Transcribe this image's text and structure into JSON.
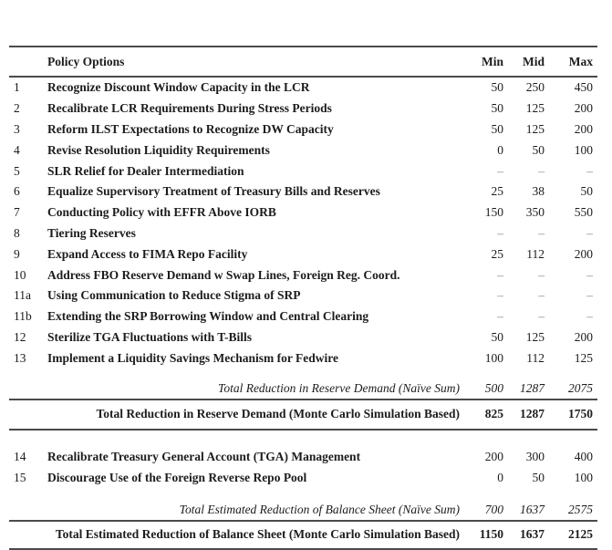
{
  "colors": {
    "rule": "#4a4a4a",
    "text": "#1c1c1c",
    "dash": "#8a8a8a"
  },
  "header": {
    "policy": "Policy Options",
    "min": "Min",
    "mid": "Mid",
    "max": "Max"
  },
  "section1": {
    "rows": [
      {
        "num": "1",
        "label": "Recognize Discount Window Capacity in the LCR",
        "min": "50",
        "mid": "250",
        "max": "450"
      },
      {
        "num": "2",
        "label": "Recalibrate LCR Requirements During Stress Periods",
        "min": "50",
        "mid": "125",
        "max": "200"
      },
      {
        "num": "3",
        "label": "Reform ILST Expectations to Recognize DW Capacity",
        "min": "50",
        "mid": "125",
        "max": "200"
      },
      {
        "num": "4",
        "label": "Revise Resolution Liquidity Requirements",
        "min": "0",
        "mid": "50",
        "max": "100"
      },
      {
        "num": "5",
        "label": "SLR Relief for Dealer Intermediation",
        "min": "–",
        "mid": "–",
        "max": "–"
      },
      {
        "num": "6",
        "label": "Equalize Supervisory Treatment of Treasury Bills and Reserves",
        "min": "25",
        "mid": "38",
        "max": "50"
      },
      {
        "num": "7",
        "label": "Conducting Policy with EFFR Above IORB",
        "min": "150",
        "mid": "350",
        "max": "550"
      },
      {
        "num": "8",
        "label": "Tiering Reserves",
        "min": "–",
        "mid": "–",
        "max": "–"
      },
      {
        "num": "9",
        "label": "Expand Access to FIMA Repo Facility",
        "min": "25",
        "mid": "112",
        "max": "200"
      },
      {
        "num": "10",
        "label": "Address FBO Reserve Demand w Swap Lines, Foreign Reg. Coord.",
        "min": "–",
        "mid": "–",
        "max": "–"
      },
      {
        "num": "11a",
        "label": "Using Communication to Reduce Stigma of SRP",
        "min": "–",
        "mid": "–",
        "max": "–"
      },
      {
        "num": "11b",
        "label": "Extending the SRP Borrowing Window and Central Clearing",
        "min": "–",
        "mid": "–",
        "max": "–"
      },
      {
        "num": "12",
        "label": "Sterilize TGA Fluctuations with T-Bills",
        "min": "50",
        "mid": "125",
        "max": "200"
      },
      {
        "num": "13",
        "label": "Implement a Liquidity Savings Mechanism for Fedwire",
        "min": "100",
        "mid": "112",
        "max": "125"
      }
    ],
    "naive": {
      "label": "Total Reduction in Reserve Demand (Naïve Sum)",
      "min": "500",
      "mid": "1287",
      "max": "2075"
    },
    "monte_carlo": {
      "label": "Total Reduction in Reserve Demand (Monte Carlo Simulation Based)",
      "min": "825",
      "mid": "1287",
      "max": "1750"
    }
  },
  "section2": {
    "rows": [
      {
        "num": "14",
        "label": "Recalibrate Treasury General Account (TGA) Management",
        "min": "200",
        "mid": "300",
        "max": "400"
      },
      {
        "num": "15",
        "label": "Discourage Use of the Foreign Reverse Repo Pool",
        "min": "0",
        "mid": "50",
        "max": "100"
      }
    ],
    "naive": {
      "label": "Total Estimated Reduction of Balance Sheet (Naïve Sum)",
      "min": "700",
      "mid": "1637",
      "max": "2575"
    },
    "monte_carlo": {
      "label": "Total Estimated Reduction of Balance Sheet (Monte Carlo Simulation Based)",
      "min": "1150",
      "mid": "1637",
      "max": "2125"
    }
  }
}
